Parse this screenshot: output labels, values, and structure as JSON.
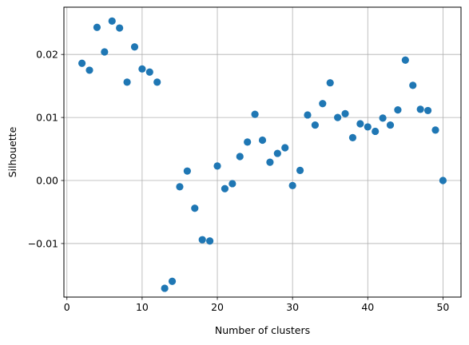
{
  "chart_data": {
    "type": "scatter",
    "title": "",
    "xlabel": "Number of clusters",
    "ylabel": "Silhouette",
    "xlim": [
      -0.4,
      52.4
    ],
    "ylim": [
      -0.0185,
      0.0275
    ],
    "xticks": [
      0,
      10,
      20,
      30,
      40,
      50
    ],
    "xtick_labels": [
      "0",
      "10",
      "20",
      "30",
      "40",
      "50"
    ],
    "yticks": [
      -0.01,
      0.0,
      0.01,
      0.02
    ],
    "ytick_labels": [
      "−0.01",
      "0.00",
      "0.01",
      "0.02"
    ],
    "grid": true,
    "marker_color": "#1f77b4",
    "x": [
      2,
      3,
      4,
      5,
      6,
      7,
      8,
      9,
      10,
      11,
      12,
      13,
      14,
      15,
      16,
      17,
      18,
      19,
      20,
      21,
      22,
      23,
      24,
      25,
      26,
      27,
      28,
      29,
      30,
      31,
      32,
      33,
      34,
      35,
      36,
      37,
      38,
      39,
      40,
      41,
      42,
      43,
      44,
      45,
      46,
      47,
      48,
      49,
      50
    ],
    "y": [
      0.0186,
      0.0175,
      0.0243,
      0.0204,
      0.0253,
      0.0242,
      0.0156,
      0.0212,
      0.0177,
      0.0172,
      0.0156,
      -0.0171,
      -0.016,
      -0.001,
      0.0015,
      -0.0044,
      -0.0094,
      -0.0096,
      0.0023,
      -0.0013,
      -0.0005,
      0.0038,
      0.0061,
      0.0105,
      0.0064,
      0.0029,
      0.0043,
      0.0052,
      -0.0008,
      0.0016,
      0.0104,
      0.0088,
      0.0122,
      0.0155,
      0.01,
      0.0106,
      0.0068,
      0.009,
      0.0085,
      0.0078,
      0.0099,
      0.0088,
      0.0112,
      0.0191,
      0.0151,
      0.0113,
      0.0111,
      0.008,
      0.0
    ]
  }
}
